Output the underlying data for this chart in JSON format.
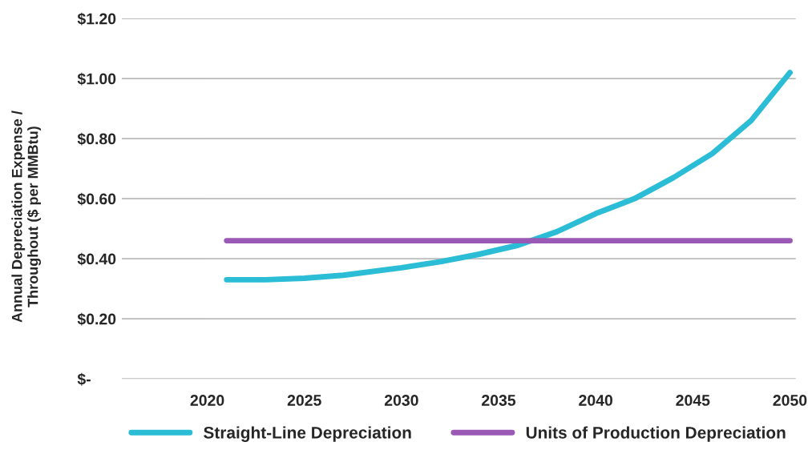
{
  "chart_data": {
    "type": "line",
    "ylabel": "Annual Depreciation Expense /\nThroughout ($ per MMBtu)",
    "x": [
      2021,
      2023,
      2025,
      2027,
      2030,
      2032,
      2034,
      2036,
      2038,
      2040,
      2042,
      2044,
      2046,
      2048,
      2050
    ],
    "series": [
      {
        "name": "Straight-Line Depreciation",
        "color": "#2bbcd6",
        "values": [
          0.33,
          0.33,
          0.335,
          0.345,
          0.37,
          0.39,
          0.415,
          0.445,
          0.49,
          0.55,
          0.6,
          0.67,
          0.75,
          0.86,
          1.02
        ]
      },
      {
        "name": "Units of Production Depreciation",
        "color": "#9b59b6",
        "values": [
          0.46,
          0.46,
          0.46,
          0.46,
          0.46,
          0.46,
          0.46,
          0.46,
          0.46,
          0.46,
          0.46,
          0.46,
          0.46,
          0.46,
          0.46
        ]
      }
    ],
    "xlim": [
      2015.6,
      2050.3
    ],
    "xticks": [
      2020,
      2025,
      2030,
      2035,
      2040,
      2045,
      2050
    ],
    "ylim": [
      0,
      1.2
    ],
    "yticks": [
      {
        "value": 0,
        "label": "$-"
      },
      {
        "value": 0.2,
        "label": "$0.20"
      },
      {
        "value": 0.4,
        "label": "$0.40"
      },
      {
        "value": 0.6,
        "label": "$0.60"
      },
      {
        "value": 0.8,
        "label": "$0.80"
      },
      {
        "value": 1.0,
        "label": "$1.00"
      },
      {
        "value": 1.2,
        "label": "$1.20"
      }
    ],
    "grid": "y",
    "legend": "bottom",
    "line_style": "solid",
    "marker": "none"
  }
}
